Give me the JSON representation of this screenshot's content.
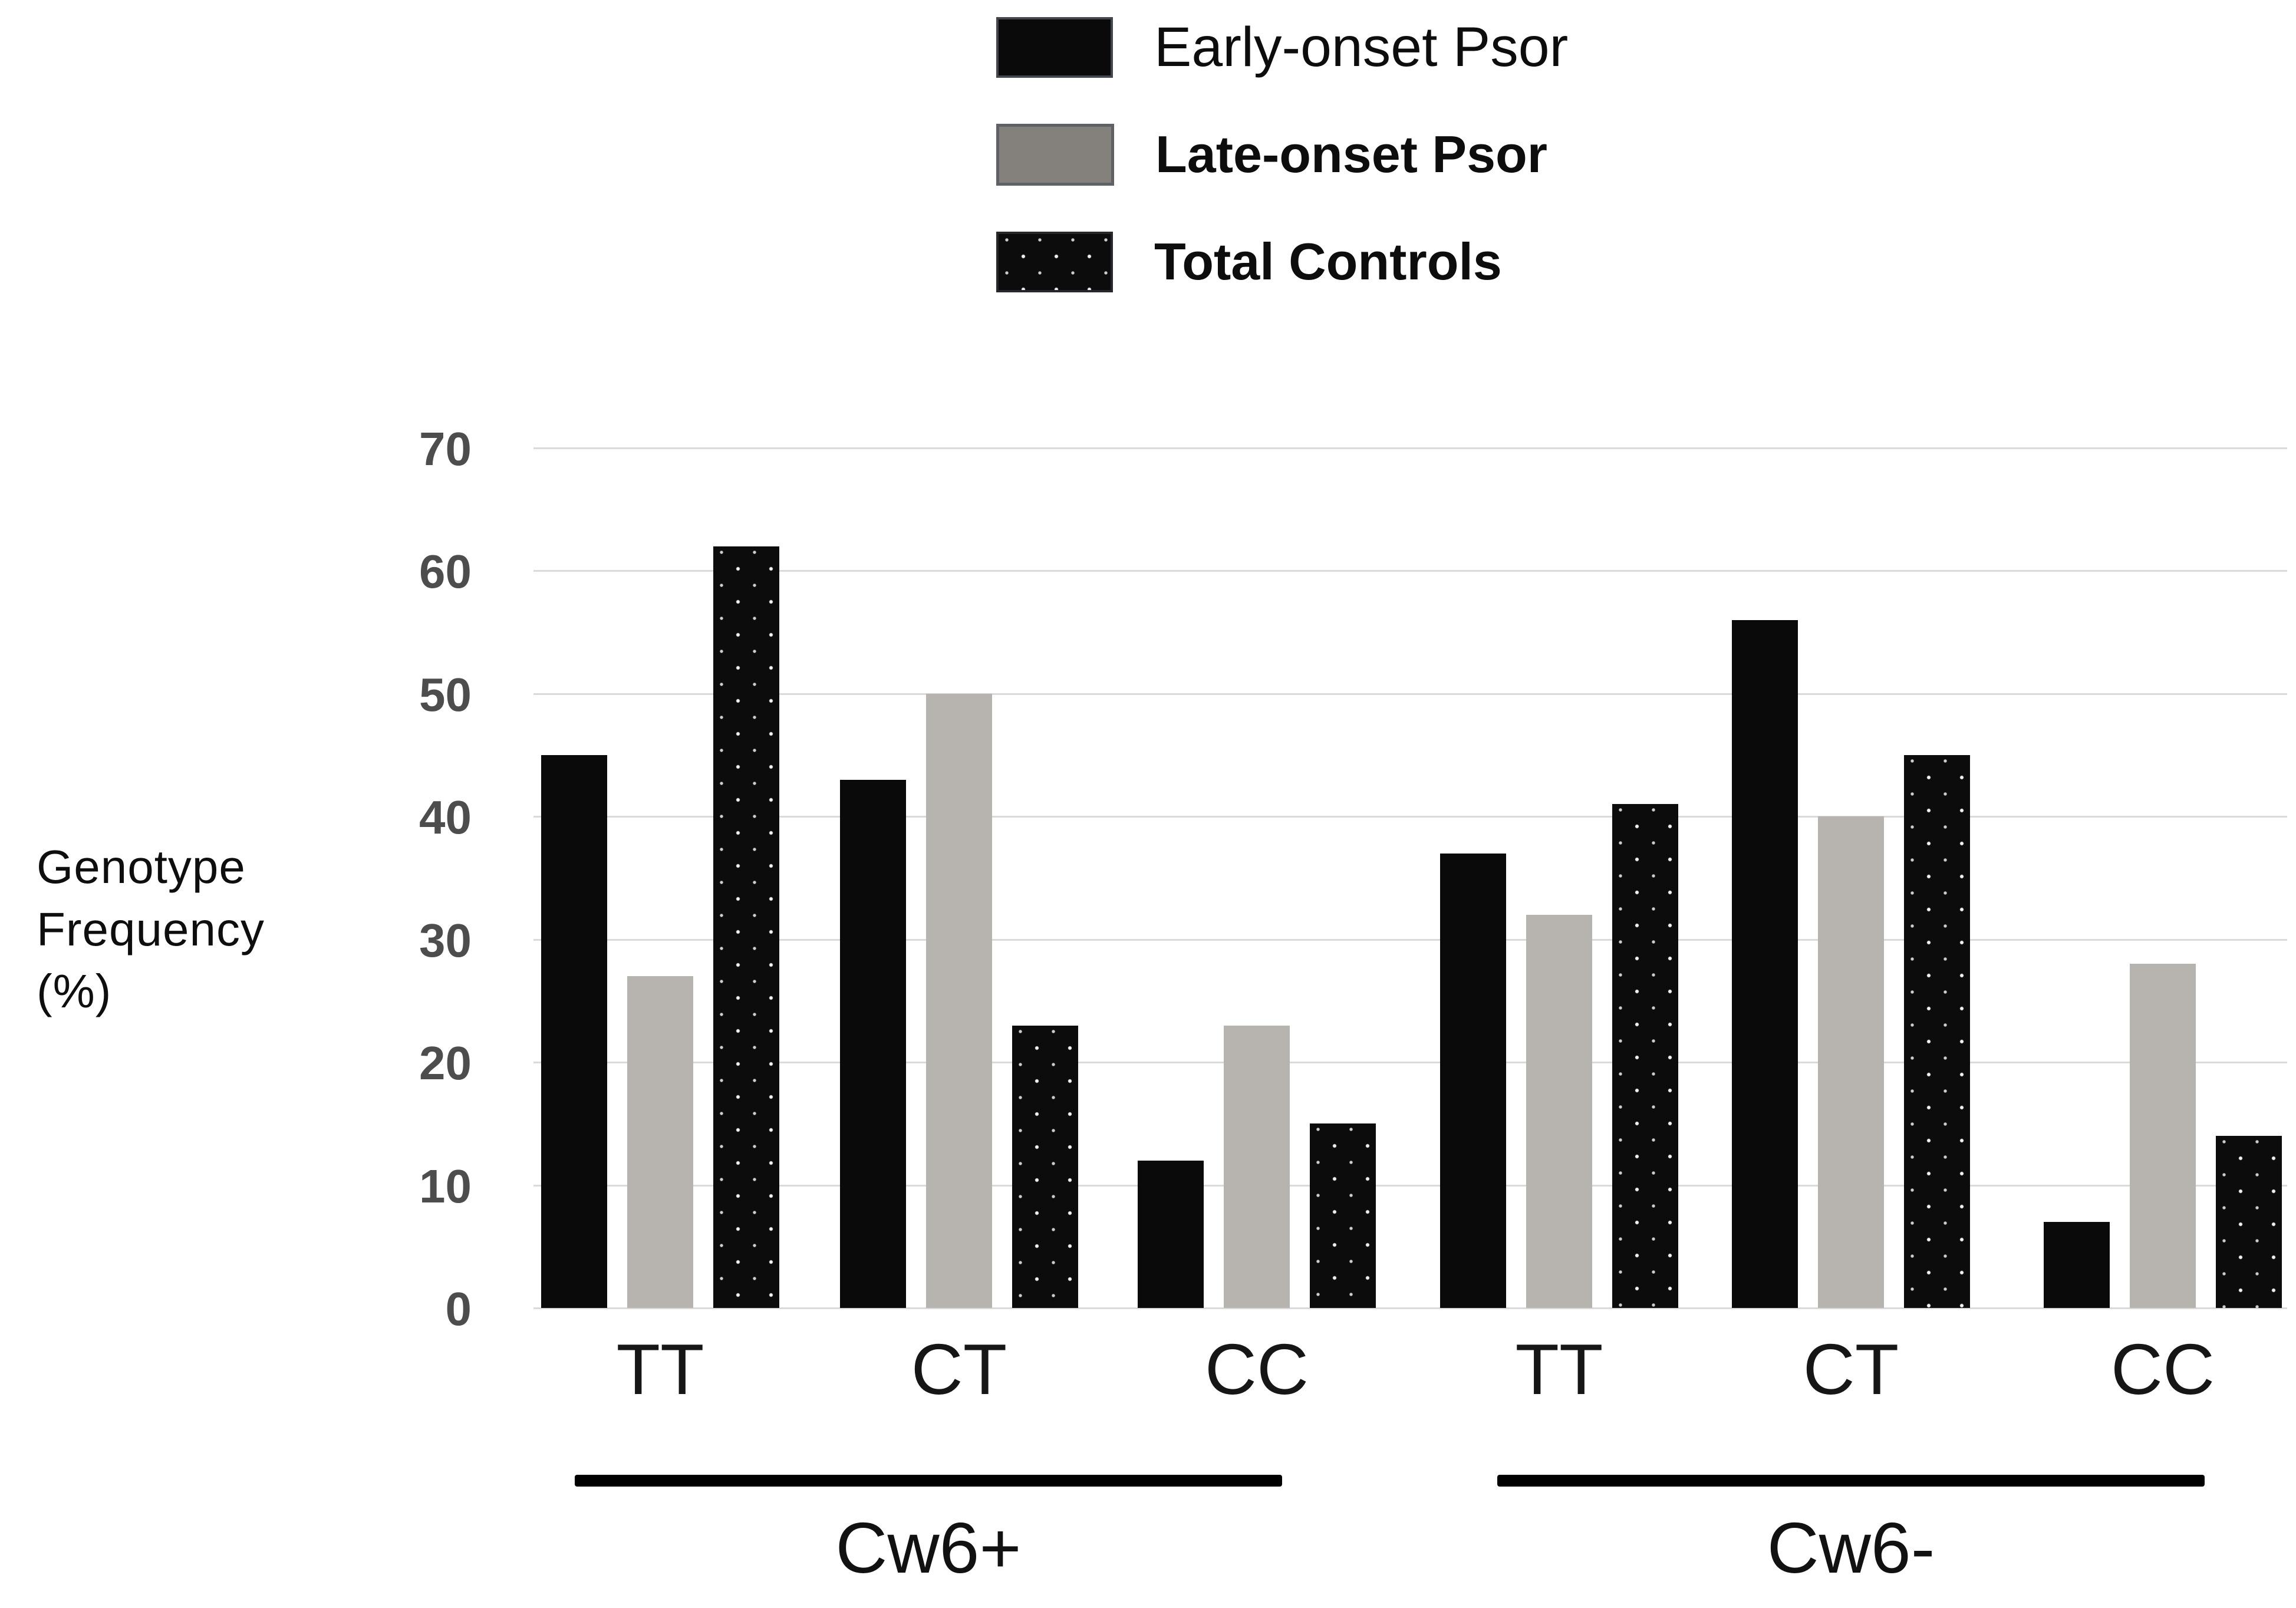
{
  "legend": {
    "items": [
      {
        "label": "Early-onset Psor",
        "swatch": "early",
        "bold": false
      },
      {
        "label": "Late-onset Psor",
        "swatch": "late",
        "bold": true
      },
      {
        "label": "Total Controls",
        "swatch": "controls",
        "bold": true
      }
    ]
  },
  "y_axis": {
    "title_lines": [
      "Genotype",
      "Frequency",
      "(%)"
    ],
    "ticks": [
      70,
      60,
      50,
      40,
      30,
      20,
      10,
      0
    ]
  },
  "chart_data": {
    "type": "bar",
    "title": "",
    "xlabel": "",
    "ylabel": "Genotype Frequency (%)",
    "ylim": [
      0,
      70
    ],
    "grid": "horizontal, every 10",
    "legend_position": "top",
    "series_names": [
      "Early-onset Psor",
      "Late-onset Psor",
      "Total Controls"
    ],
    "group_sections": [
      {
        "label": "Cw6+",
        "genotypes": [
          "TT",
          "CT",
          "CC"
        ]
      },
      {
        "label": "Cw6-",
        "genotypes": [
          "TT",
          "CT",
          "CC"
        ]
      }
    ],
    "groups": [
      {
        "section": "Cw6+",
        "genotype": "TT",
        "values": [
          45,
          27,
          62
        ]
      },
      {
        "section": "Cw6+",
        "genotype": "CT",
        "values": [
          43,
          50,
          23
        ]
      },
      {
        "section": "Cw6+",
        "genotype": "CC",
        "values": [
          12,
          23,
          15
        ]
      },
      {
        "section": "Cw6-",
        "genotype": "TT",
        "values": [
          37,
          32,
          41
        ]
      },
      {
        "section": "Cw6-",
        "genotype": "CT",
        "values": [
          56,
          40,
          45
        ]
      },
      {
        "section": "Cw6-",
        "genotype": "CC",
        "values": [
          7,
          28,
          14
        ]
      }
    ]
  },
  "colors": {
    "early_bar": "#0a0a0a",
    "late_bar": "#b7b4b0",
    "controls_bar_bg": "#0c0c0c",
    "controls_bar_dot": "#ffffff",
    "gridline": "#dadada",
    "tick_label": "#4d4d4d",
    "legend_gray_swatch": "#84817c"
  }
}
